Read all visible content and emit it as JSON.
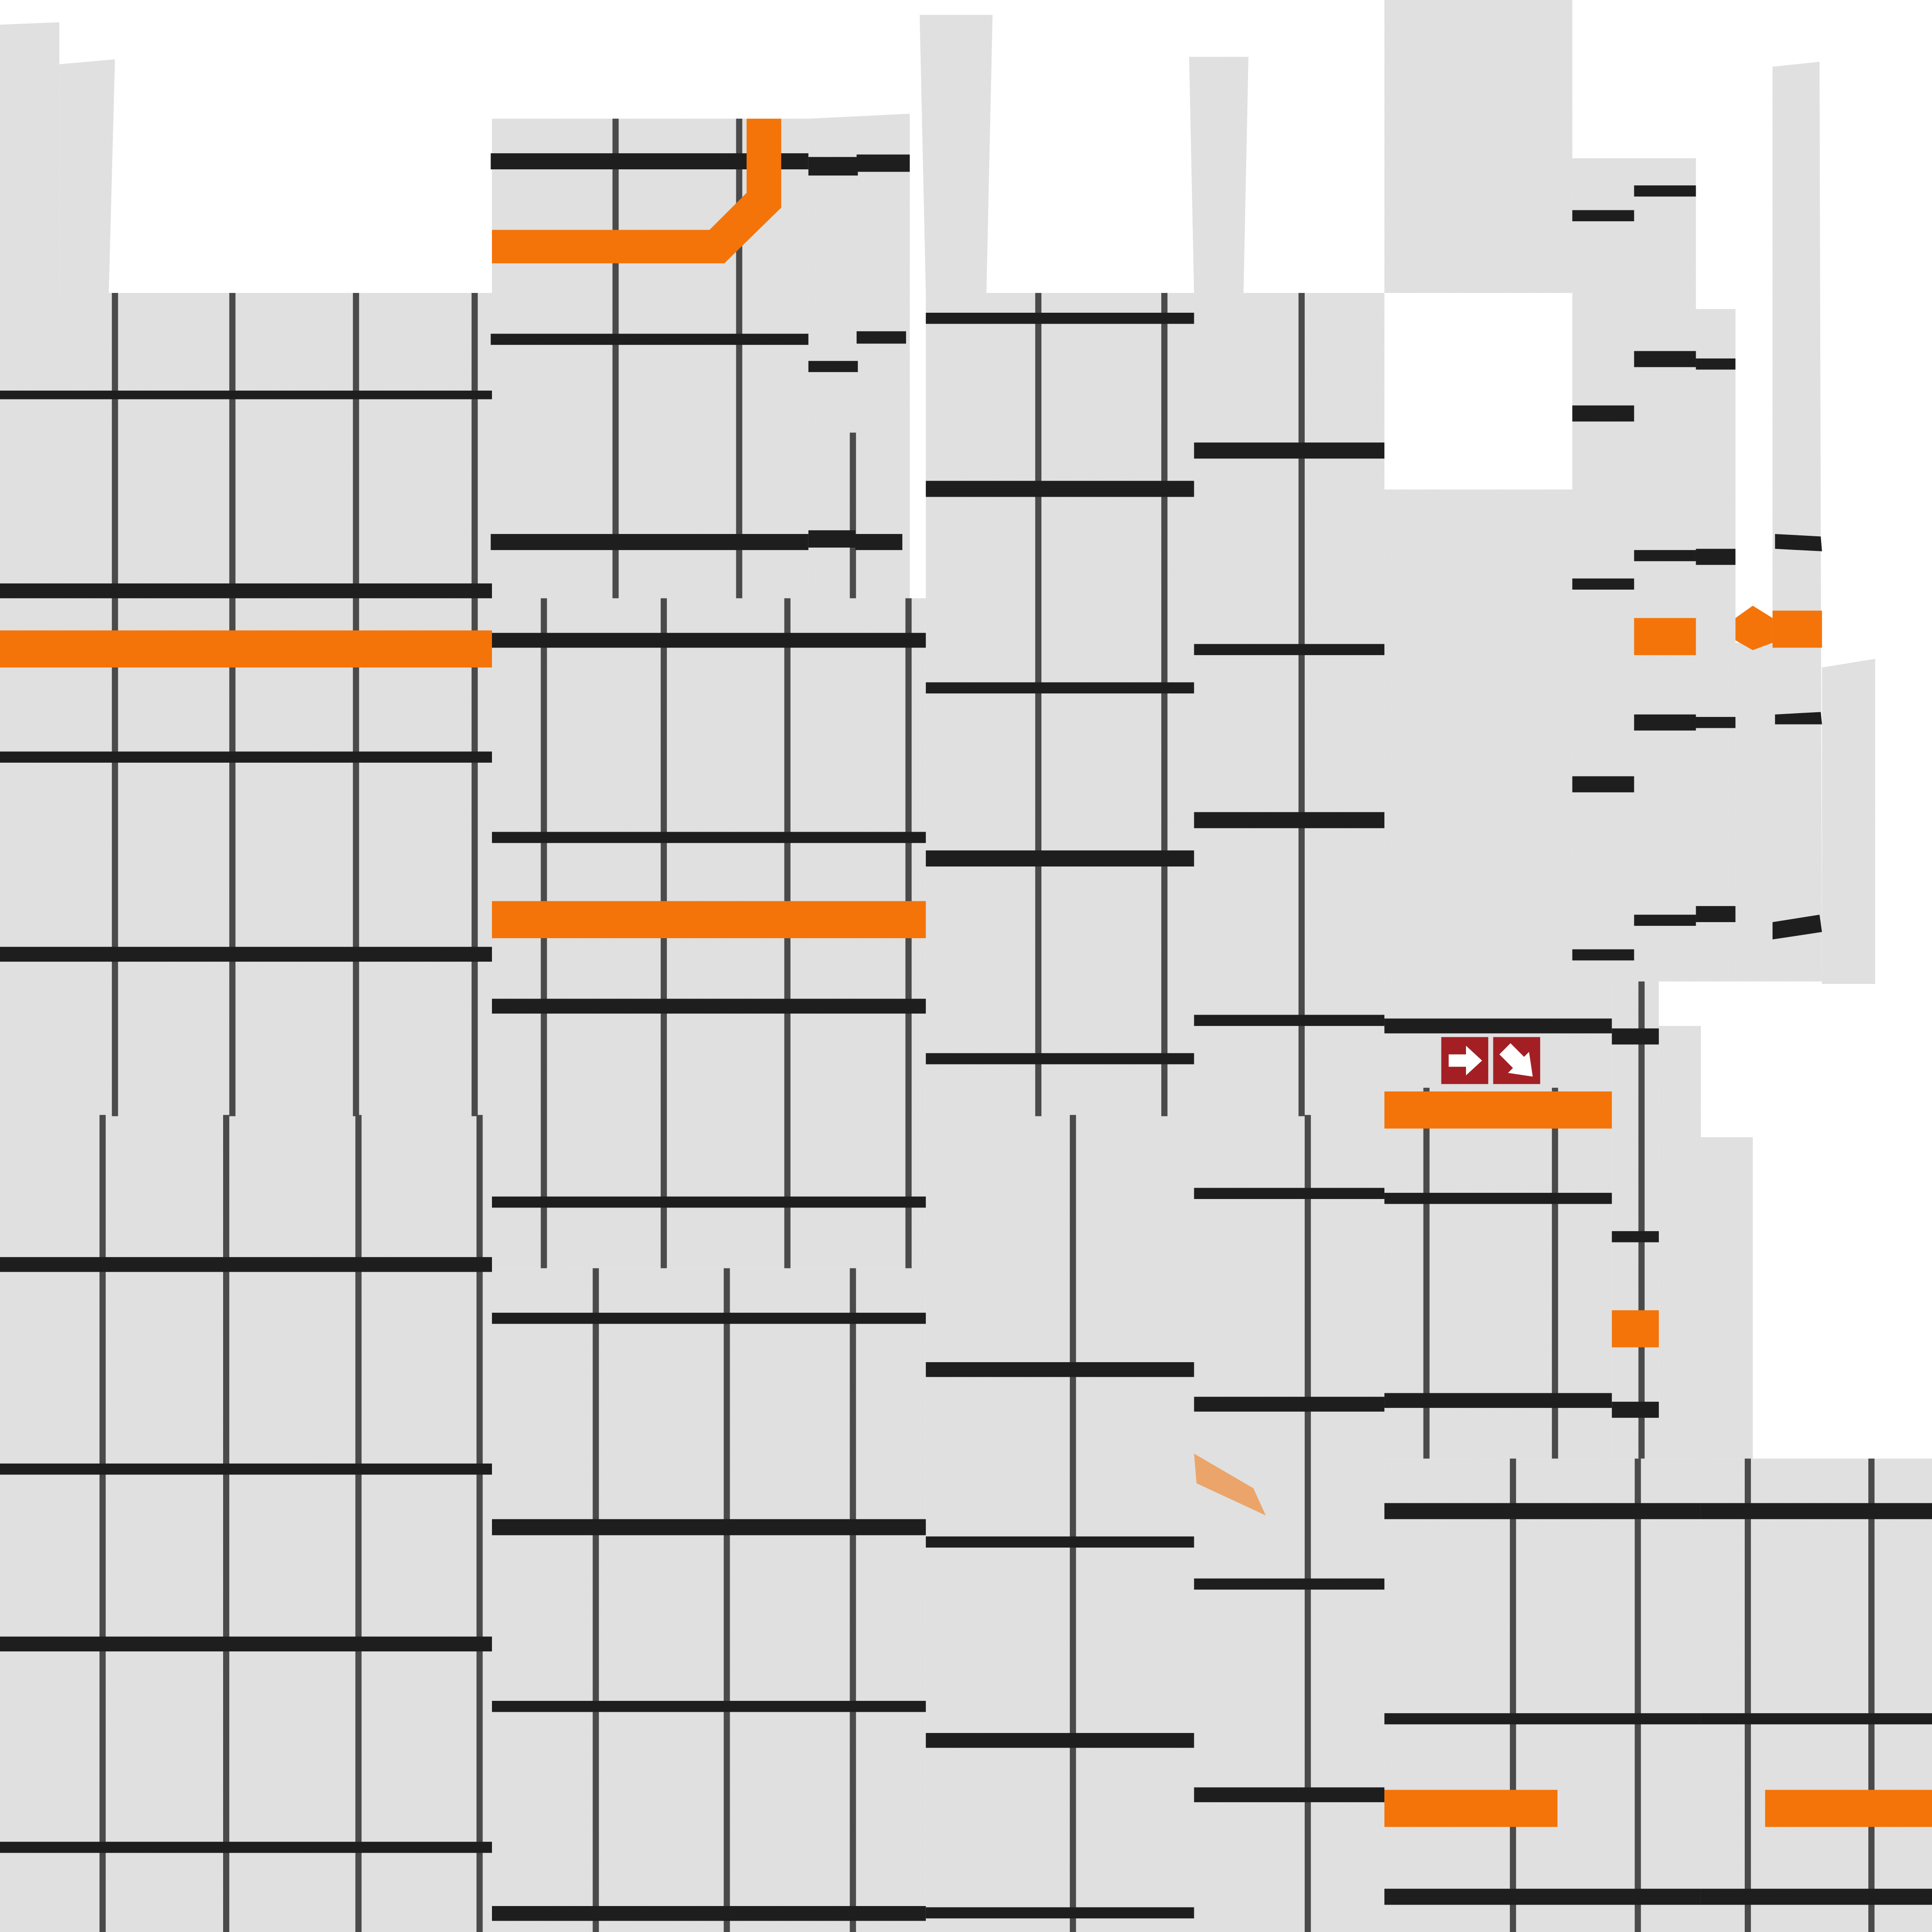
{
  "texture": {
    "panel_color": "#e1e1e1",
    "panel_shadow": "#d7d7d7",
    "grid_line_color": "#4a4a4a",
    "bar_color": "#1e1e1e",
    "accent_color": "#f47409",
    "sign_color": "#a31f24",
    "sign_glyph_color": "#ffffff",
    "sign_icons": [
      "arrow-right-icon",
      "arrow-down-right-icon"
    ]
  }
}
